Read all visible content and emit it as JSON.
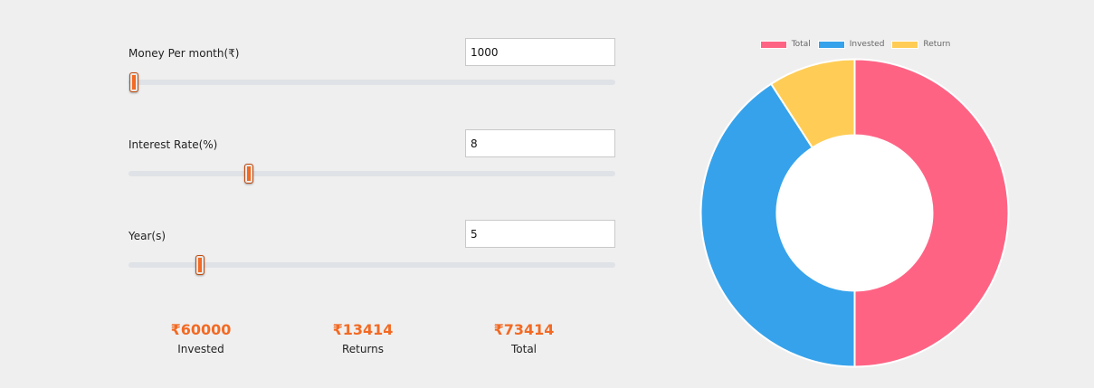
{
  "calculator": {
    "fields": [
      {
        "label": "Money Per month(₹)",
        "value": "1000",
        "slider_fraction": 0.011
      },
      {
        "label": "Interest Rate(%)",
        "value": "8",
        "slider_fraction": 0.247
      },
      {
        "label": "Year(s)",
        "value": "5",
        "slider_fraction": 0.147
      }
    ],
    "slider_color": "#f26a24",
    "results": [
      {
        "value": "₹60000",
        "label": "Invested"
      },
      {
        "value": "₹13414",
        "label": "Returns"
      },
      {
        "value": "₹73414",
        "label": "Total"
      }
    ]
  },
  "chart_data": {
    "type": "pie",
    "variant": "doughnut",
    "legend_position": "top",
    "categories": [
      "Total",
      "Invested",
      "Return"
    ],
    "values": [
      73414,
      60000,
      13414
    ],
    "colors": [
      "#ff6384",
      "#36a2eb",
      "#ffcd56"
    ]
  }
}
